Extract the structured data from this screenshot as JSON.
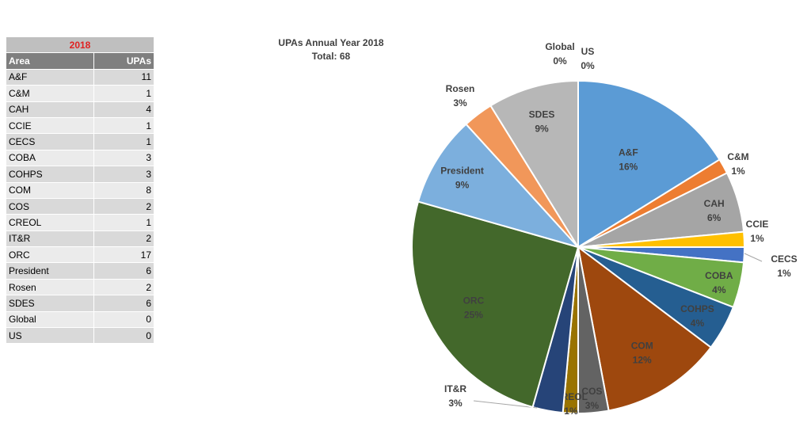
{
  "table": {
    "year": "2018",
    "headers": [
      "Area",
      "UPAs"
    ],
    "rows": [
      {
        "area": "A&F",
        "upas": "11"
      },
      {
        "area": "C&M",
        "upas": "1"
      },
      {
        "area": "CAH",
        "upas": "4"
      },
      {
        "area": "CCIE",
        "upas": "1"
      },
      {
        "area": "CECS",
        "upas": "1"
      },
      {
        "area": "COBA",
        "upas": "3"
      },
      {
        "area": "COHPS",
        "upas": "3"
      },
      {
        "area": "COM",
        "upas": "8"
      },
      {
        "area": "COS",
        "upas": "2"
      },
      {
        "area": "CREOL",
        "upas": "1"
      },
      {
        "area": "IT&R",
        "upas": "2"
      },
      {
        "area": "ORC",
        "upas": "17"
      },
      {
        "area": "President",
        "upas": "6"
      },
      {
        "area": "Rosen",
        "upas": "2"
      },
      {
        "area": "SDES",
        "upas": "6"
      },
      {
        "area": "Global",
        "upas": "0"
      },
      {
        "area": "US",
        "upas": "0"
      }
    ]
  },
  "chart_data": {
    "type": "pie",
    "title": "UPAs Annual Year 2018",
    "subtitle": "Total: 68",
    "slices": [
      {
        "label": "A&F",
        "value": 11,
        "percent": "16%",
        "color": "#5b9bd5"
      },
      {
        "label": "C&M",
        "value": 1,
        "percent": "1%",
        "color": "#ed7d31"
      },
      {
        "label": "CAH",
        "value": 4,
        "percent": "6%",
        "color": "#a5a5a5"
      },
      {
        "label": "CCIE",
        "value": 1,
        "percent": "1%",
        "color": "#ffc000"
      },
      {
        "label": "CECS",
        "value": 1,
        "percent": "1%",
        "color": "#4472c4"
      },
      {
        "label": "COBA",
        "value": 3,
        "percent": "4%",
        "color": "#70ad47"
      },
      {
        "label": "COHPS",
        "value": 3,
        "percent": "4%",
        "color": "#255e91"
      },
      {
        "label": "COM",
        "value": 8,
        "percent": "12%",
        "color": "#9e480e"
      },
      {
        "label": "COS",
        "value": 2,
        "percent": "3%",
        "color": "#636363"
      },
      {
        "label": "CREOL",
        "value": 1,
        "percent": "1%",
        "color": "#997300"
      },
      {
        "label": "IT&R",
        "value": 2,
        "percent": "3%",
        "color": "#264478"
      },
      {
        "label": "ORC",
        "value": 17,
        "percent": "25%",
        "color": "#43682b"
      },
      {
        "label": "President",
        "value": 6,
        "percent": "9%",
        "color": "#7cafdd"
      },
      {
        "label": "Rosen",
        "value": 2,
        "percent": "3%",
        "color": "#f1975a"
      },
      {
        "label": "SDES",
        "value": 6,
        "percent": "9%",
        "color": "#b7b7b7"
      },
      {
        "label": "Global",
        "value": 0,
        "percent": "0%",
        "color": "#ffcd33"
      },
      {
        "label": "US",
        "value": 0,
        "percent": "0%",
        "color": "#698ed0"
      }
    ]
  }
}
